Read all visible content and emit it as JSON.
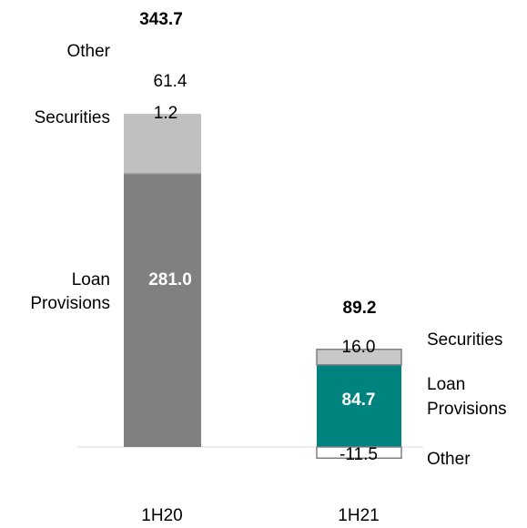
{
  "chart_data": {
    "type": "bar",
    "stacked": true,
    "title": "",
    "xlabel": "",
    "ylabel": "",
    "categories": [
      "1H20",
      "1H21"
    ],
    "series": [
      {
        "name": "Loan Provisions",
        "values": [
          281.0,
          84.7
        ],
        "labels": [
          "281.0",
          "84.7"
        ],
        "colors": [
          "#808080",
          "#00827f"
        ]
      },
      {
        "name": "Securities",
        "values": [
          1.2,
          16.0
        ],
        "labels": [
          "1.2",
          "16.0"
        ],
        "colors": [
          "#7f7f7f",
          "#c8c8c8"
        ]
      },
      {
        "name": "Other",
        "values": [
          61.4,
          -11.5
        ],
        "labels": [
          "61.4",
          "-11.5"
        ],
        "colors": [
          "#c0c0c0",
          "#ffffff"
        ]
      }
    ],
    "totals": [
      "343.7",
      "89.2"
    ],
    "segment_labels": {
      "1H20": {
        "other": "Other",
        "securities": "Securities",
        "loan_provisions": [
          "Loan",
          "Provisions"
        ]
      },
      "1H21": {
        "securities": "Securities",
        "loan_provisions": [
          "Loan",
          "Provisions"
        ],
        "other": "Other"
      }
    },
    "legend": "none",
    "grid": false
  }
}
